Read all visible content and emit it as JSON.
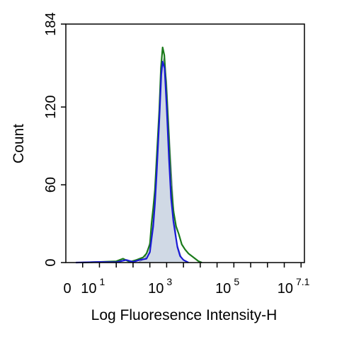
{
  "chart_data": {
    "type": "area",
    "xlabel": "Log Fluoresence Intensity-H",
    "ylabel": "Count",
    "x_scale": "log",
    "xlim": [
      0,
      7.1
    ],
    "ylim": [
      0,
      184
    ],
    "y_ticks": [
      {
        "value": 0,
        "label": "0"
      },
      {
        "value": 60,
        "label": "60"
      },
      {
        "value": 120,
        "label": "120"
      },
      {
        "value": 184,
        "label": "184"
      }
    ],
    "x_tick_labels": [
      {
        "value": 0,
        "base": "0",
        "exp": ""
      },
      {
        "value": 1,
        "base": "10",
        "exp": "1"
      },
      {
        "value": 3,
        "base": "10",
        "exp": "3"
      },
      {
        "value": 5,
        "base": "10",
        "exp": "5"
      },
      {
        "value": 7.1,
        "base": "10",
        "exp": "7.1"
      }
    ],
    "x_minor_ticks": [
      0.5,
      1,
      1.5,
      2,
      2.5,
      3,
      3.5,
      4,
      4.5,
      5,
      5.5,
      6,
      6.5,
      7
    ],
    "series": [
      {
        "color": "#c0ccdc",
        "fill": true,
        "points": [
          [
            2.15,
            0
          ],
          [
            2.35,
            3
          ],
          [
            2.55,
            20
          ],
          [
            2.65,
            48
          ],
          [
            2.75,
            100
          ],
          [
            2.85,
            150
          ],
          [
            2.92,
            158
          ],
          [
            3.0,
            140
          ],
          [
            3.1,
            90
          ],
          [
            3.2,
            45
          ],
          [
            3.3,
            15
          ],
          [
            3.45,
            3
          ],
          [
            3.6,
            0
          ]
        ]
      },
      {
        "color": "#1a7a1a",
        "fill": false,
        "points": [
          [
            0.5,
            0
          ],
          [
            1.0,
            0.5
          ],
          [
            1.5,
            1
          ],
          [
            1.7,
            3
          ],
          [
            1.9,
            0.5
          ],
          [
            2.1,
            2
          ],
          [
            2.3,
            4
          ],
          [
            2.4,
            7
          ],
          [
            2.5,
            14
          ],
          [
            2.55,
            30
          ],
          [
            2.6,
            42
          ],
          [
            2.65,
            56
          ],
          [
            2.7,
            80
          ],
          [
            2.78,
            118
          ],
          [
            2.83,
            150
          ],
          [
            2.88,
            166
          ],
          [
            2.93,
            160
          ],
          [
            3.0,
            130
          ],
          [
            3.07,
            95
          ],
          [
            3.13,
            60
          ],
          [
            3.2,
            40
          ],
          [
            3.28,
            28
          ],
          [
            3.36,
            22
          ],
          [
            3.45,
            14
          ],
          [
            3.55,
            10
          ],
          [
            3.65,
            7
          ],
          [
            3.8,
            4
          ],
          [
            3.95,
            1
          ],
          [
            4.05,
            0
          ]
        ]
      },
      {
        "color": "#1a1ad6",
        "fill": false,
        "points": [
          [
            0.3,
            0
          ],
          [
            1.0,
            0.5
          ],
          [
            1.5,
            0.3
          ],
          [
            1.8,
            2
          ],
          [
            2.0,
            0.5
          ],
          [
            2.2,
            2
          ],
          [
            2.4,
            3
          ],
          [
            2.5,
            8
          ],
          [
            2.55,
            18
          ],
          [
            2.6,
            28
          ],
          [
            2.65,
            45
          ],
          [
            2.7,
            68
          ],
          [
            2.78,
            110
          ],
          [
            2.84,
            145
          ],
          [
            2.88,
            155
          ],
          [
            2.94,
            150
          ],
          [
            3.0,
            120
          ],
          [
            3.07,
            80
          ],
          [
            3.13,
            50
          ],
          [
            3.2,
            32
          ],
          [
            3.26,
            22
          ],
          [
            3.32,
            12
          ],
          [
            3.4,
            5
          ],
          [
            3.5,
            2
          ],
          [
            3.65,
            0
          ]
        ]
      }
    ]
  }
}
